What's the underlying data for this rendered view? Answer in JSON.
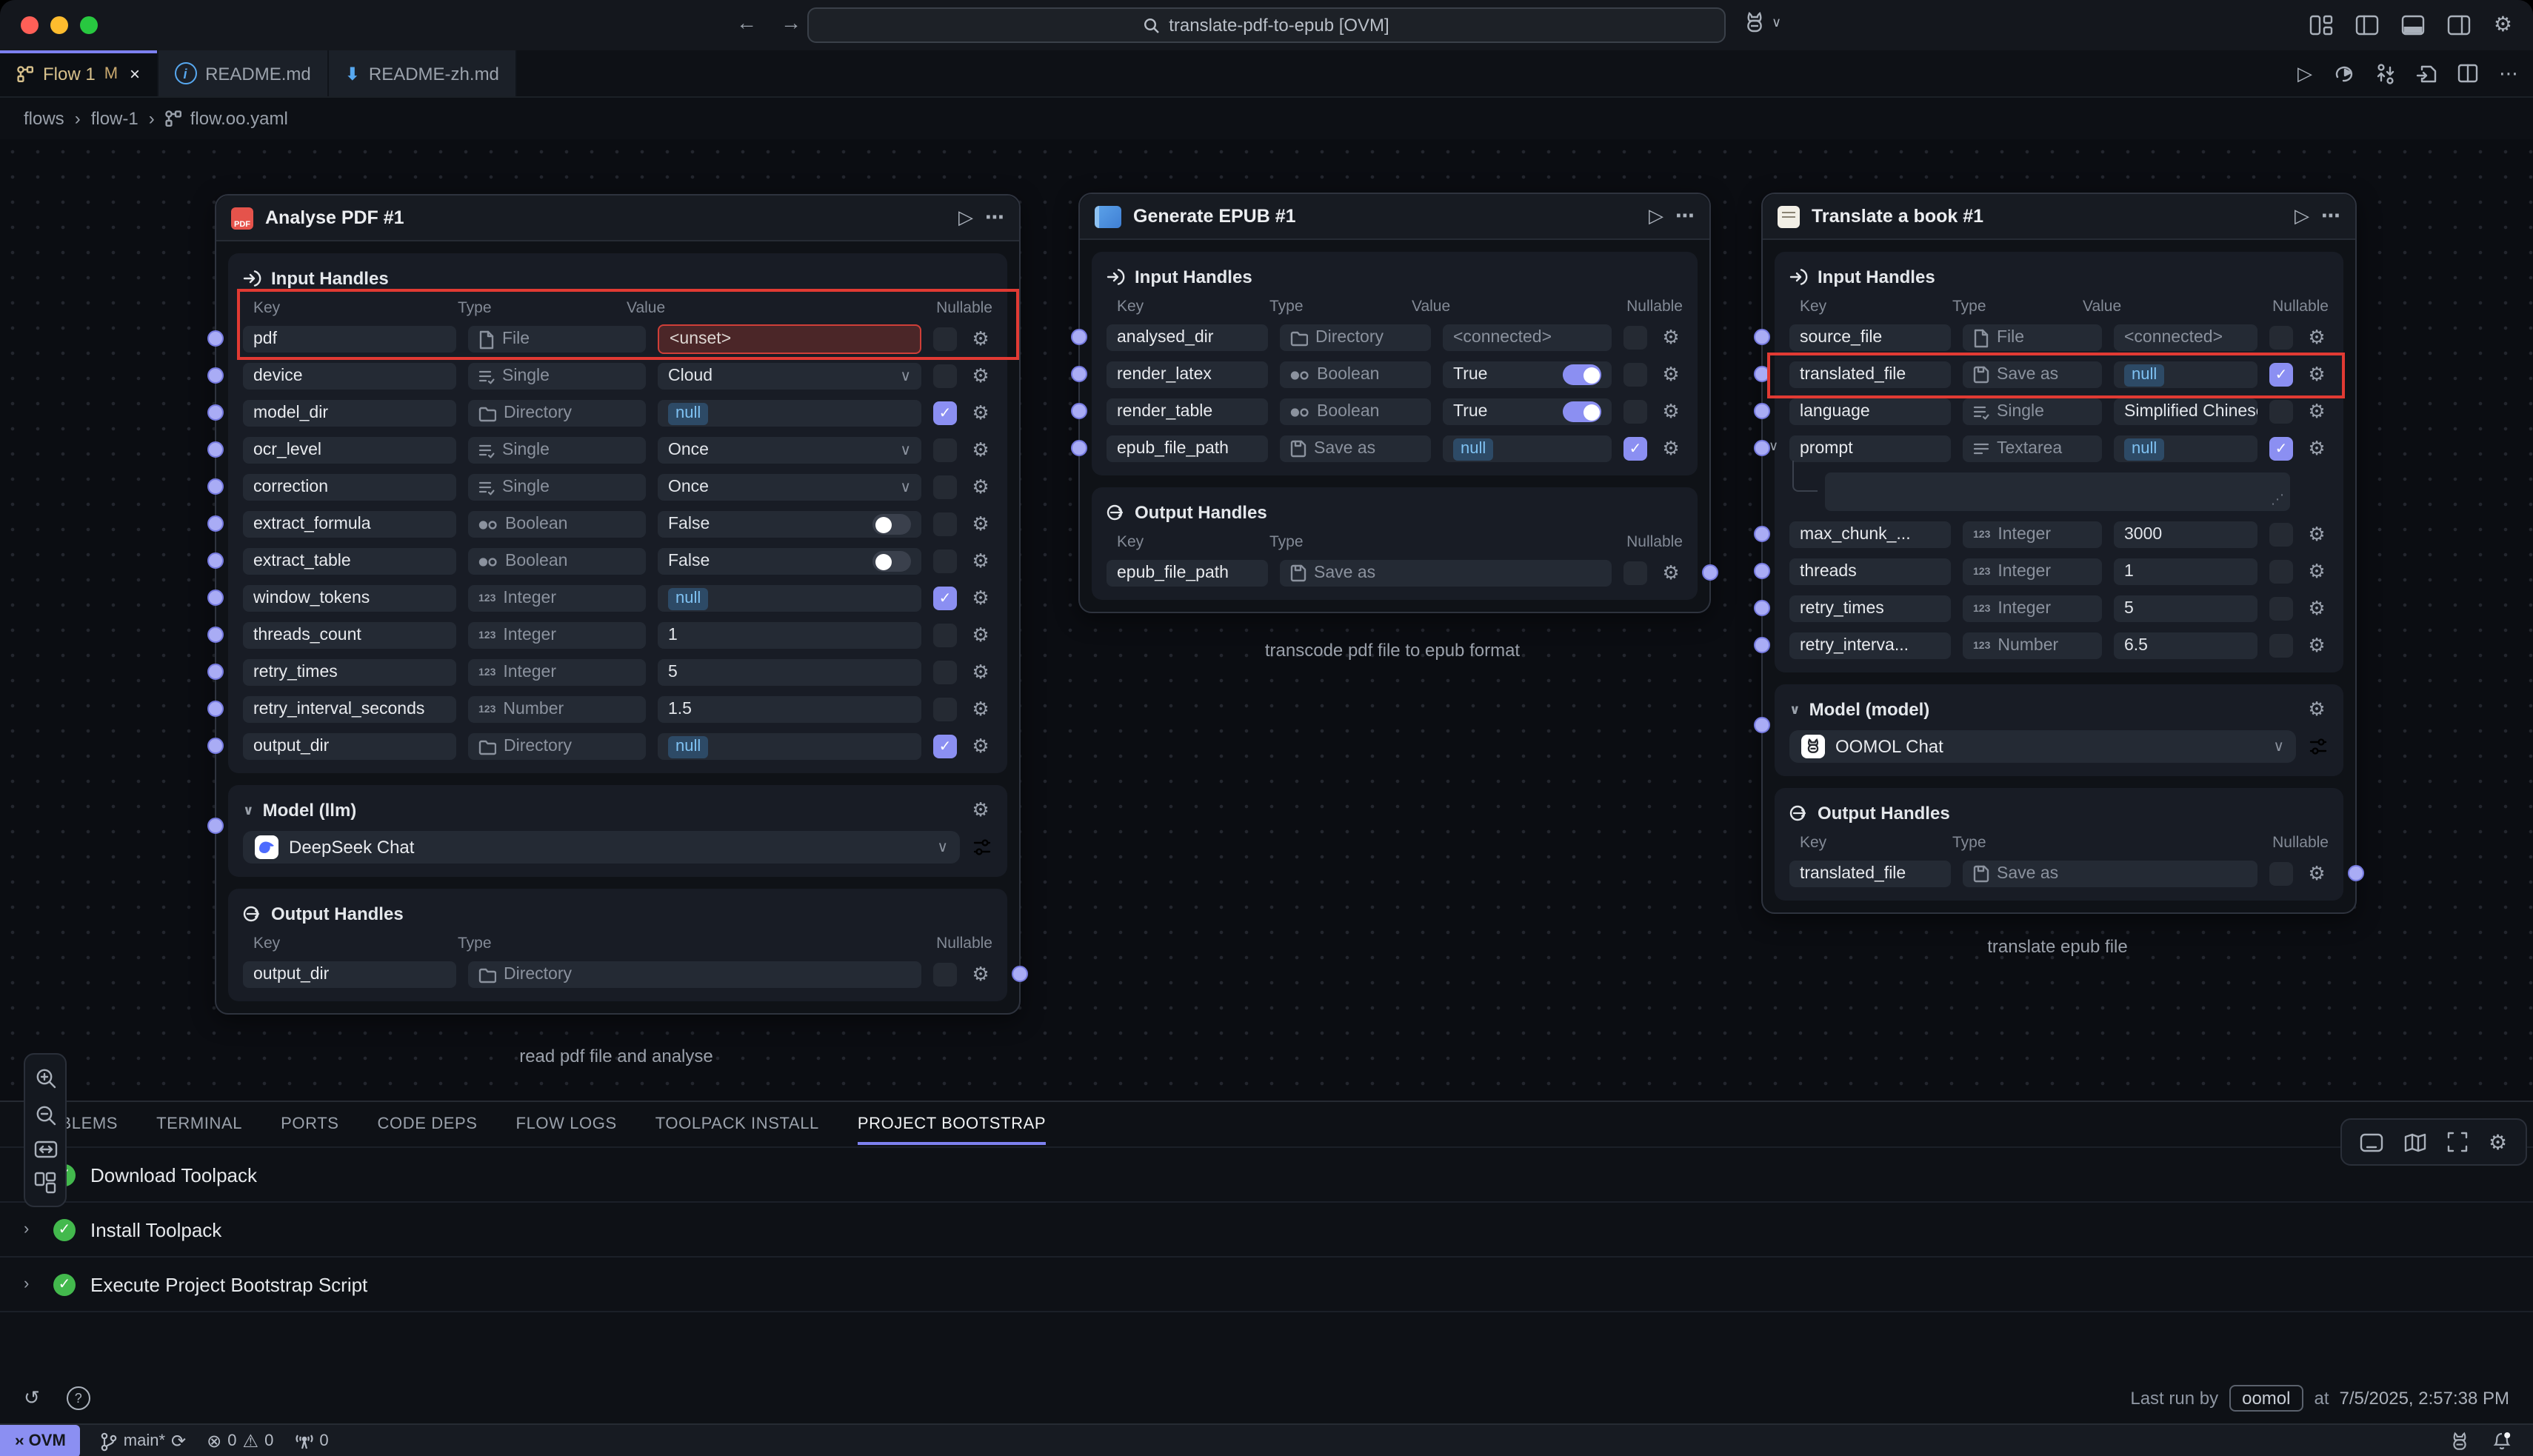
{
  "window": {
    "search_text": "translate-pdf-to-epub [OVM]",
    "titlebar_icons": [
      "customize-layout",
      "toggle-left-panel",
      "toggle-bottom-panel",
      "toggle-right-panel",
      "settings-gear"
    ],
    "traffic_lights": [
      "close",
      "minimize",
      "zoom"
    ]
  },
  "tabs": [
    {
      "label": "Flow 1",
      "icon": "flow",
      "modified": "M",
      "closable": true,
      "active": true
    },
    {
      "label": "README.md",
      "icon": "info",
      "active": false
    },
    {
      "label": "README-zh.md",
      "icon": "down-arrow",
      "active": false
    }
  ],
  "editor_actions": [
    "run",
    "rerun",
    "swap",
    "export-file",
    "split-editor",
    "more"
  ],
  "breadcrumb": [
    "flows",
    "flow-1",
    "flow.oo.yaml"
  ],
  "canvas": {
    "left_toolbar": [
      "zoom-in",
      "zoom-out",
      "fit-width",
      "layout-grid"
    ],
    "bottom_right_toolbar": [
      "console",
      "minimap",
      "fullscreen",
      "settings-gear"
    ]
  },
  "nodes": [
    {
      "title": "Analyse PDF #1",
      "icon": "pdf",
      "caption": "read pdf file and analyse",
      "input_handles": {
        "label": "Input Handles",
        "columns": [
          "Key",
          "Type",
          "Value",
          "Nullable"
        ],
        "rows": [
          {
            "key": "pdf",
            "type": "File",
            "type_icon": "file",
            "value": {
              "kind": "unset",
              "text": "<unset>"
            },
            "nullable": false,
            "annotated": true
          },
          {
            "key": "device",
            "type": "Single",
            "type_icon": "single",
            "value": {
              "kind": "select",
              "text": "Cloud"
            },
            "nullable": false
          },
          {
            "key": "model_dir",
            "type": "Directory",
            "type_icon": "directory",
            "value": {
              "kind": "null",
              "text": "null"
            },
            "nullable": true
          },
          {
            "key": "ocr_level",
            "type": "Single",
            "type_icon": "single",
            "value": {
              "kind": "select",
              "text": "Once"
            },
            "nullable": false
          },
          {
            "key": "correction",
            "type": "Single",
            "type_icon": "single",
            "value": {
              "kind": "select",
              "text": "Once"
            },
            "nullable": false
          },
          {
            "key": "extract_formula",
            "type": "Boolean",
            "type_icon": "boolean",
            "value": {
              "kind": "toggle",
              "text": "False",
              "on": false
            },
            "nullable": false
          },
          {
            "key": "extract_table",
            "type": "Boolean",
            "type_icon": "boolean",
            "value": {
              "kind": "toggle",
              "text": "False",
              "on": false
            },
            "nullable": false
          },
          {
            "key": "window_tokens",
            "type": "Integer",
            "type_icon": "integer",
            "value": {
              "kind": "null",
              "text": "null"
            },
            "nullable": true
          },
          {
            "key": "threads_count",
            "type": "Integer",
            "type_icon": "integer",
            "value": {
              "kind": "text",
              "text": "1"
            },
            "nullable": false
          },
          {
            "key": "retry_times",
            "type": "Integer",
            "type_icon": "integer",
            "value": {
              "kind": "text",
              "text": "5"
            },
            "nullable": false
          },
          {
            "key": "retry_interval_seconds",
            "type": "Number",
            "type_icon": "number",
            "value": {
              "kind": "text",
              "text": "1.5"
            },
            "nullable": false
          },
          {
            "key": "output_dir",
            "type": "Directory",
            "type_icon": "directory",
            "value": {
              "kind": "null",
              "text": "null"
            },
            "nullable": true
          }
        ]
      },
      "model": {
        "label": "Model (llm)",
        "value": "DeepSeek Chat",
        "logo": "deepseek"
      },
      "output_handles": {
        "label": "Output Handles",
        "columns": [
          "Key",
          "Type",
          "Nullable"
        ],
        "rows": [
          {
            "key": "output_dir",
            "type": "Directory",
            "type_icon": "directory",
            "nullable": false
          }
        ]
      }
    },
    {
      "title": "Generate EPUB #1",
      "icon": "epub",
      "caption": "transcode pdf file to epub format",
      "input_handles": {
        "label": "Input Handles",
        "columns": [
          "Key",
          "Type",
          "Value",
          "Nullable"
        ],
        "rows": [
          {
            "key": "analysed_dir",
            "type": "Directory",
            "type_icon": "directory",
            "value": {
              "kind": "connected",
              "text": "<connected>"
            },
            "nullable": false
          },
          {
            "key": "render_latex",
            "type": "Boolean",
            "type_icon": "boolean",
            "value": {
              "kind": "toggle",
              "text": "True",
              "on": true
            },
            "nullable": false
          },
          {
            "key": "render_table",
            "type": "Boolean",
            "type_icon": "boolean",
            "value": {
              "kind": "toggle",
              "text": "True",
              "on": true
            },
            "nullable": false
          },
          {
            "key": "epub_file_path",
            "type": "Save as",
            "type_icon": "save",
            "value": {
              "kind": "null",
              "text": "null"
            },
            "nullable": true
          }
        ]
      },
      "model": null,
      "output_handles": {
        "label": "Output Handles",
        "columns": [
          "Key",
          "Type",
          "Nullable"
        ],
        "rows": [
          {
            "key": "epub_file_path",
            "type": "Save as",
            "type_icon": "save",
            "nullable": false
          }
        ]
      }
    },
    {
      "title": "Translate a book #1",
      "icon": "note",
      "caption": "translate epub file",
      "input_handles": {
        "label": "Input Handles",
        "columns": [
          "Key",
          "Type",
          "Value",
          "Nullable"
        ],
        "rows": [
          {
            "key": "source_file",
            "type": "File",
            "type_icon": "file",
            "value": {
              "kind": "connected",
              "text": "<connected>"
            },
            "nullable": false
          },
          {
            "key": "translated_file",
            "type": "Save as",
            "type_icon": "save",
            "value": {
              "kind": "null",
              "text": "null"
            },
            "nullable": true,
            "annotated": true
          },
          {
            "key": "language",
            "type": "Single",
            "type_icon": "single",
            "value": {
              "kind": "select",
              "text": "Simplified Chinese"
            },
            "nullable": false
          },
          {
            "key": "prompt",
            "type": "Textarea",
            "type_icon": "textarea",
            "value": {
              "kind": "null",
              "text": "null"
            },
            "nullable": true,
            "expander": true,
            "textarea": true
          },
          {
            "key": "max_chunk_...",
            "type": "Integer",
            "type_icon": "integer",
            "value": {
              "kind": "text",
              "text": "3000"
            },
            "nullable": false
          },
          {
            "key": "threads",
            "type": "Integer",
            "type_icon": "integer",
            "value": {
              "kind": "text",
              "text": "1"
            },
            "nullable": false
          },
          {
            "key": "retry_times",
            "type": "Integer",
            "type_icon": "integer",
            "value": {
              "kind": "text",
              "text": "5"
            },
            "nullable": false
          },
          {
            "key": "retry_interva...",
            "type": "Number",
            "type_icon": "number",
            "value": {
              "kind": "text",
              "text": "6.5"
            },
            "nullable": false
          }
        ]
      },
      "model": {
        "label": "Model (model)",
        "value": "OOMOL Chat",
        "logo": "oomol"
      },
      "output_handles": {
        "label": "Output Handles",
        "columns": [
          "Key",
          "Type",
          "Nullable"
        ],
        "rows": [
          {
            "key": "translated_file",
            "type": "Save as",
            "type_icon": "save",
            "nullable": false
          }
        ]
      }
    }
  ],
  "bottom_panel": {
    "tabs": [
      "PROBLEMS",
      "TERMINAL",
      "PORTS",
      "CODE DEPS",
      "FLOW LOGS",
      "TOOLPACK INSTALL",
      "PROJECT BOOTSTRAP"
    ],
    "active_tab": "PROJECT BOOTSTRAP",
    "steps": [
      {
        "label": "Download Toolpack",
        "status": "success"
      },
      {
        "label": "Install Toolpack",
        "status": "success"
      },
      {
        "label": "Execute Project Bootstrap Script",
        "status": "success"
      }
    ],
    "last_run": {
      "prefix": "Last run by",
      "user": "oomol",
      "at_word": "at",
      "time": "7/5/2025, 2:57:38 PM"
    }
  },
  "statusbar": {
    "remote_badge": "OVM",
    "branch": "main*",
    "errors": "0",
    "warnings": "0",
    "ports": "0",
    "right_icons": [
      "oomol-rabbit",
      "bell-notification"
    ]
  },
  "colors": {
    "accent": "#8b8ff2",
    "annotation_red": "#e13a33",
    "null_badge_bg": "#2d4a66",
    "null_badge_text": "#7fc2f3",
    "success_green": "#43b94d",
    "unset_border": "#cf3f38",
    "edge": "#7f83ea",
    "active_tab_text": "#d8c18c",
    "traffic": [
      "#ff5f57",
      "#febc2e",
      "#28c840"
    ]
  }
}
